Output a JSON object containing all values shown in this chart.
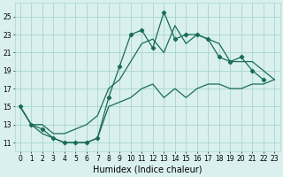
{
  "x": [
    0,
    1,
    2,
    3,
    4,
    5,
    6,
    7,
    8,
    9,
    10,
    11,
    12,
    13,
    14,
    15,
    16,
    17,
    18,
    19,
    20,
    21,
    22,
    23
  ],
  "y_main": [
    15,
    13,
    12.5,
    11.5,
    11,
    11,
    11,
    11.5,
    16,
    19.5,
    23,
    23.5,
    21.5,
    25.5,
    22.5,
    23,
    23,
    22.5,
    20.5,
    20,
    20.5,
    19,
    18,
    null
  ],
  "y_upper": [
    15,
    13,
    13,
    12,
    12,
    12.5,
    13,
    14,
    17,
    18,
    20,
    22,
    22.5,
    21,
    24,
    22,
    23,
    22.5,
    22,
    20,
    20,
    20,
    19,
    18
  ],
  "y_lower": [
    15,
    13,
    12,
    11.5,
    11,
    11,
    11,
    11.5,
    15,
    15.5,
    16,
    17,
    17.5,
    16,
    17,
    16,
    17,
    17.5,
    17.5,
    17,
    17,
    17.5,
    17.5,
    18
  ],
  "bg_color": "#d9f0ee",
  "grid_color": "#a8d5d0",
  "line_color": "#1a6b5a",
  "xlim": [
    -0.5,
    23.5
  ],
  "ylim": [
    10,
    26.5
  ],
  "yticks": [
    11,
    13,
    15,
    17,
    19,
    21,
    23,
    25
  ],
  "xticks": [
    0,
    1,
    2,
    3,
    4,
    5,
    6,
    7,
    8,
    9,
    10,
    11,
    12,
    13,
    14,
    15,
    16,
    17,
    18,
    19,
    20,
    21,
    22,
    23
  ],
  "xlabel": "Humidex (Indice chaleur)",
  "xlabel_fontsize": 7,
  "tick_fontsize": 5.5
}
